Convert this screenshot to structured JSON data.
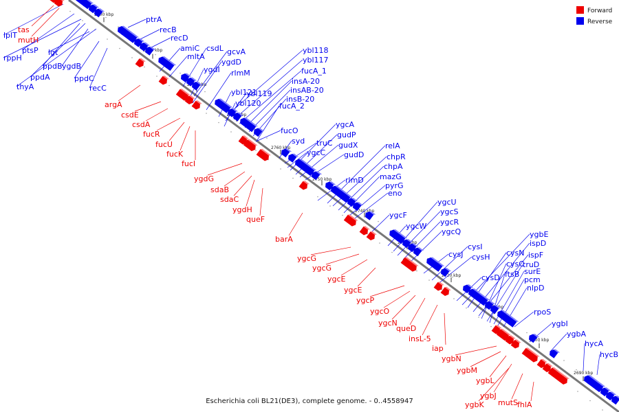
{
  "caption": "Escherichia coli BL21(DE3), complete genome. - 0..4558947",
  "colors": {
    "forward": "#ee0000",
    "reverse": "#0000ee",
    "axis": "#777777"
  },
  "legend": [
    {
      "label": "Forward",
      "strand": "forward"
    },
    {
      "label": "Reverse",
      "strand": "reverse"
    }
  ],
  "scale_ticks": [
    "2800 kbp",
    "2790 kbp",
    "2780 kbp",
    "2770 kbp",
    "2760 kbp",
    "2750 kbp",
    "2740 kbp",
    "2730 kbp",
    "2720 kbp",
    "2710 kbp",
    "2700 kbp",
    "2690 kbp"
  ],
  "genes": {
    "reverse": [
      "lplT",
      "rppH",
      "ptsP",
      "lgt",
      "thyA",
      "ppdA",
      "ppdB",
      "ygdB",
      "ppdC",
      "recC",
      "ptrA",
      "recB",
      "recD",
      "amiC",
      "mltA",
      "csdL",
      "gcvA",
      "ygdD",
      "ygdI",
      "rlmM",
      "ybl118",
      "ybl117",
      "fucA_1",
      "insA-20",
      "insAB-20",
      "insB-20",
      "fucA_2",
      "ybl121",
      "ybl119",
      "ybl120",
      "fucO",
      "syd",
      "ygcA",
      "gudP",
      "truC",
      "ygcC",
      "gudX",
      "gudD",
      "relA",
      "chpR",
      "chpA",
      "rlmD",
      "mazG",
      "pyrG",
      "eno",
      "ygcF",
      "ygcU",
      "ygcW",
      "ygcS",
      "ygcR",
      "ygcQ",
      "cysI",
      "cysJ",
      "cysH",
      "cysD",
      "ygbE",
      "cysN",
      "ispD",
      "ispF",
      "cysC",
      "truD",
      "ftsB",
      "surE",
      "pcm",
      "nlpD",
      "rpoS",
      "ygbI",
      "ygbA",
      "hycA",
      "hycB"
    ],
    "forward": [
      "tas",
      "mutH",
      "argA",
      "csdE",
      "csdA",
      "fucR",
      "fucU",
      "fucK",
      "fucI",
      "ygdG",
      "sdaB",
      "sdaC",
      "ygdH",
      "queF",
      "barA",
      "ygcG",
      "ygcG",
      "ygcE",
      "ygcE",
      "ygcP",
      "ygcO",
      "ygcN",
      "queD",
      "insL-5",
      "iap",
      "ygbN",
      "ygbM",
      "ygbL",
      "ygbJ",
      "ygbK",
      "mutS",
      "fhlA"
    ]
  }
}
